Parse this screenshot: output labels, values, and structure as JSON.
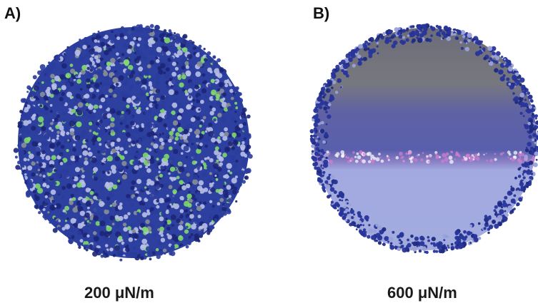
{
  "panels": [
    {
      "label": "A)",
      "caption": "200 μN/m",
      "colors": {
        "base": "#2a3c9c",
        "dark": "#1c2577",
        "light": "#b8bfe6",
        "green": "#7fd86a"
      }
    },
    {
      "label": "B)",
      "caption": "600 μN/m",
      "colors": {
        "rim": "#28359a",
        "upper": "#7b7c86",
        "middle": "#5c60aa",
        "lower": "#9fa8df",
        "pink": "#d57ed0"
      }
    }
  ]
}
